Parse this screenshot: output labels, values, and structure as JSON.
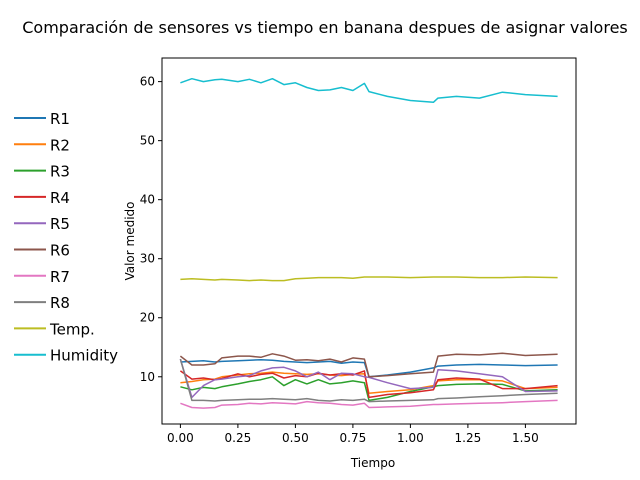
{
  "chart_data": {
    "type": "line",
    "title": "Comparación de sensores vs tiempo en banana despues de asignar valores",
    "xlabel": "Tiempo",
    "ylabel": "Valor medido",
    "xlim": [
      -0.08,
      1.72
    ],
    "ylim": [
      2,
      64
    ],
    "xticks": [
      0.0,
      0.25,
      0.5,
      0.75,
      1.0,
      1.25,
      1.5
    ],
    "xtick_labels": [
      "0.00",
      "0.25",
      "0.50",
      "0.75",
      "1.00",
      "1.25",
      "1.50"
    ],
    "yticks": [
      10,
      20,
      30,
      40,
      50,
      60
    ],
    "ytick_labels": [
      "10",
      "20",
      "30",
      "40",
      "50",
      "60"
    ],
    "grid": false,
    "legend_position": "outside-left",
    "x": [
      0.0,
      0.05,
      0.1,
      0.15,
      0.18,
      0.25,
      0.3,
      0.35,
      0.4,
      0.45,
      0.5,
      0.55,
      0.6,
      0.65,
      0.7,
      0.75,
      0.8,
      0.82,
      0.9,
      1.0,
      1.1,
      1.12,
      1.2,
      1.3,
      1.4,
      1.5,
      1.64
    ],
    "series": [
      {
        "name": "R1",
        "color": "#1f77b4",
        "values": [
          12.5,
          12.6,
          12.7,
          12.5,
          12.6,
          12.7,
          12.8,
          12.9,
          12.8,
          12.6,
          12.5,
          12.4,
          12.5,
          12.6,
          12.3,
          12.5,
          12.4,
          10.0,
          10.3,
          10.8,
          11.5,
          11.8,
          12.0,
          12.1,
          12.0,
          11.9,
          12.0
        ]
      },
      {
        "name": "R2",
        "color": "#ff7f0e",
        "values": [
          9.0,
          9.2,
          9.5,
          9.6,
          10.0,
          10.3,
          10.5,
          10.6,
          10.8,
          10.6,
          10.5,
          10.4,
          10.5,
          10.3,
          10.2,
          10.4,
          10.5,
          7.2,
          7.5,
          7.8,
          8.5,
          9.3,
          9.5,
          9.5,
          9.3,
          8.0,
          8.2
        ]
      },
      {
        "name": "R3",
        "color": "#2ca02c",
        "values": [
          8.3,
          7.8,
          8.2,
          8.0,
          8.3,
          8.8,
          9.2,
          9.5,
          10.0,
          8.5,
          9.5,
          8.8,
          9.5,
          8.8,
          9.0,
          9.3,
          9.0,
          6.0,
          6.5,
          7.5,
          8.3,
          8.5,
          8.7,
          8.8,
          8.7,
          7.6,
          7.8
        ]
      },
      {
        "name": "R4",
        "color": "#d62728",
        "values": [
          11.0,
          9.6,
          9.8,
          9.5,
          9.7,
          10.5,
          10.0,
          10.4,
          10.6,
          9.8,
          10.2,
          10.0,
          10.6,
          10.3,
          10.5,
          10.3,
          11.0,
          6.5,
          7.0,
          7.3,
          7.8,
          9.5,
          9.8,
          9.6,
          8.0,
          8.0,
          8.5
        ]
      },
      {
        "name": "R5",
        "color": "#9467bd",
        "values": [
          13.0,
          6.5,
          8.5,
          9.5,
          9.6,
          10.0,
          10.2,
          11.0,
          11.5,
          11.6,
          11.0,
          10.0,
          10.8,
          9.5,
          10.6,
          10.5,
          10.0,
          9.9,
          9.0,
          8.0,
          8.2,
          11.2,
          11.0,
          10.5,
          10.0,
          7.5,
          7.6
        ]
      },
      {
        "name": "R6",
        "color": "#8c564b",
        "values": [
          13.5,
          12.0,
          12.0,
          12.2,
          13.2,
          13.5,
          13.5,
          13.3,
          13.9,
          13.5,
          12.8,
          12.9,
          12.7,
          13.0,
          12.5,
          13.2,
          13.0,
          10.0,
          10.2,
          10.5,
          10.8,
          13.5,
          13.8,
          13.7,
          14.0,
          13.6,
          13.8
        ]
      },
      {
        "name": "R7",
        "color": "#e377c2",
        "values": [
          5.5,
          4.8,
          4.7,
          4.8,
          5.2,
          5.3,
          5.5,
          5.4,
          5.6,
          5.5,
          5.4,
          5.8,
          5.6,
          5.5,
          5.3,
          5.2,
          5.5,
          4.8,
          4.9,
          5.0,
          5.3,
          5.3,
          5.4,
          5.5,
          5.6,
          5.8,
          6.0
        ]
      },
      {
        "name": "R8",
        "color": "#7f7f7f",
        "values": [
          13.0,
          6.0,
          6.0,
          5.9,
          6.0,
          6.1,
          6.2,
          6.2,
          6.3,
          6.2,
          6.1,
          6.3,
          6.0,
          5.9,
          6.1,
          6.0,
          6.2,
          5.8,
          5.9,
          6.0,
          6.1,
          6.3,
          6.4,
          6.6,
          6.8,
          7.0,
          7.2
        ]
      },
      {
        "name": "Temp.",
        "color": "#bcbd22",
        "values": [
          26.5,
          26.6,
          26.5,
          26.4,
          26.5,
          26.4,
          26.3,
          26.4,
          26.3,
          26.3,
          26.6,
          26.7,
          26.8,
          26.8,
          26.8,
          26.7,
          26.9,
          26.9,
          26.9,
          26.8,
          26.9,
          26.9,
          26.9,
          26.8,
          26.8,
          26.9,
          26.8
        ]
      },
      {
        "name": "Humidity",
        "color": "#17becf",
        "values": [
          59.8,
          60.5,
          60.0,
          60.3,
          60.4,
          60.0,
          60.4,
          59.8,
          60.5,
          59.5,
          59.8,
          59.0,
          58.5,
          58.6,
          59.0,
          58.5,
          59.7,
          58.3,
          57.5,
          56.8,
          56.5,
          57.2,
          57.5,
          57.2,
          58.2,
          57.8,
          57.5
        ]
      }
    ]
  }
}
